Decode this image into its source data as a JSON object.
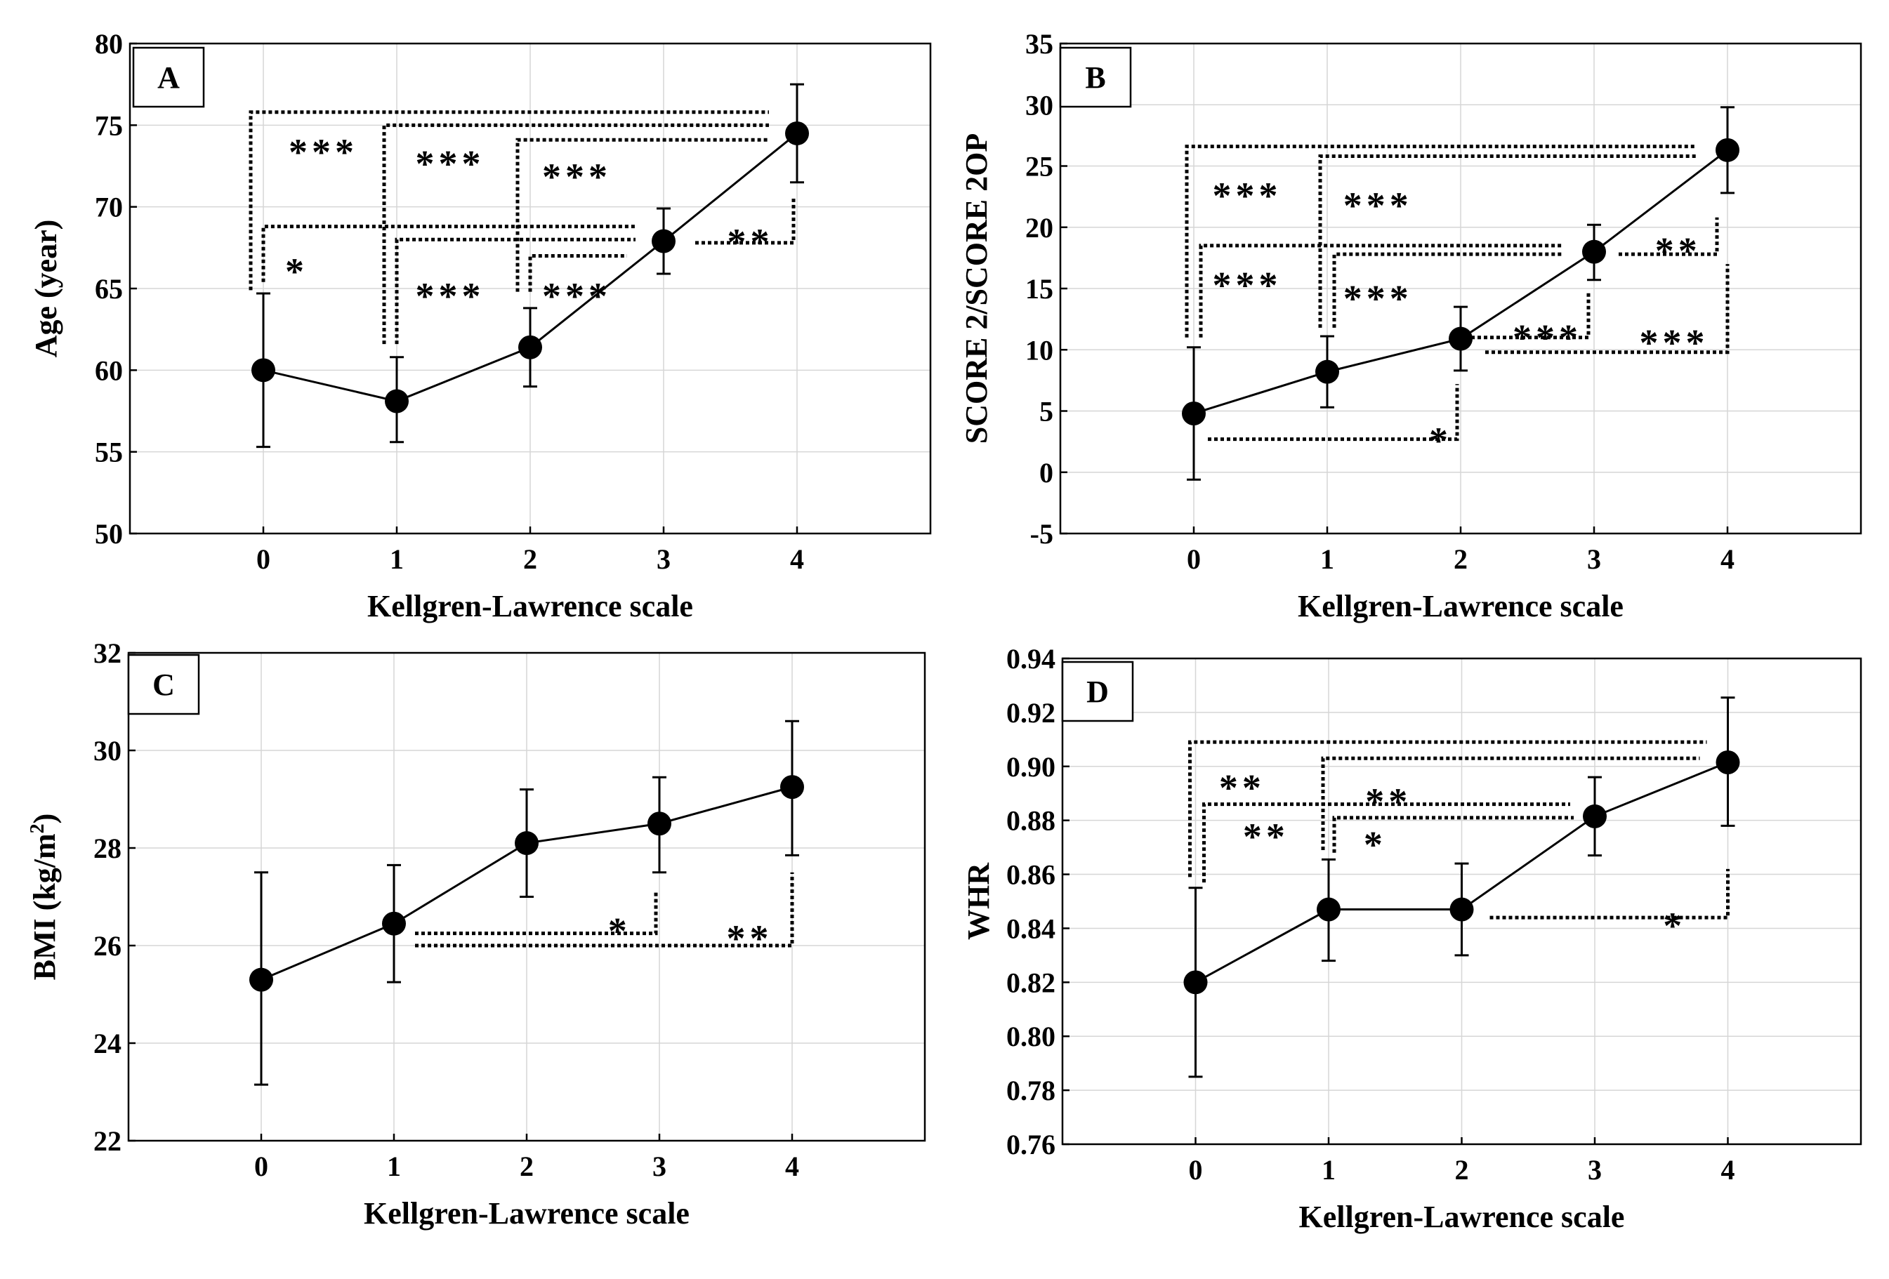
{
  "figure": {
    "panels": [
      {
        "id": "A",
        "label": "A"
      },
      {
        "id": "B",
        "label": "B"
      },
      {
        "id": "C",
        "label": "C"
      },
      {
        "id": "D",
        "label": "D"
      }
    ]
  },
  "chart_data": [
    {
      "id": "A",
      "type": "line",
      "title": "A",
      "xlabel": "Kellgren-Lawrence scale",
      "ylabel": "Age (year)",
      "x": [
        0,
        1,
        2,
        3,
        4
      ],
      "x_ticks": [
        "0",
        "1",
        "2",
        "3",
        "4"
      ],
      "xlim": [
        -1,
        5
      ],
      "ylim": [
        50,
        80
      ],
      "y_ticks": [
        "50",
        "55",
        "60",
        "65",
        "70",
        "75",
        "80"
      ],
      "grid": true,
      "series": [
        {
          "name": "Age",
          "values": [
            60.0,
            58.1,
            61.4,
            67.9,
            74.5
          ],
          "err_low": [
            55.3,
            55.6,
            59.0,
            65.9,
            71.5
          ],
          "err_high": [
            64.7,
            60.8,
            63.8,
            69.9,
            77.5
          ]
        }
      ],
      "annotations": [
        {
          "text": "***",
          "from": 0,
          "to": 4,
          "x": 0.45,
          "y": 73.5
        },
        {
          "text": "*",
          "from": 0,
          "to": 3,
          "x": 0.25,
          "y": 66.2
        },
        {
          "text": "***",
          "from": 1,
          "to": 4,
          "x": 1.4,
          "y": 72.8
        },
        {
          "text": "***",
          "from": 1,
          "to": 3,
          "x": 1.4,
          "y": 64.7
        },
        {
          "text": "***",
          "from": 2,
          "to": 4,
          "x": 2.35,
          "y": 72.0
        },
        {
          "text": "***",
          "from": 2,
          "to": 3,
          "x": 2.35,
          "y": 64.7
        },
        {
          "text": "**",
          "from": 3,
          "to": 4,
          "x": 3.65,
          "y": 68.0
        }
      ]
    },
    {
      "id": "B",
      "type": "line",
      "title": "B",
      "xlabel": "Kellgren-Lawrence scale",
      "ylabel": "SCORE 2/SCORE 2OP",
      "x": [
        0,
        1,
        2,
        3,
        4
      ],
      "x_ticks": [
        "0",
        "1",
        "2",
        "3",
        "4"
      ],
      "xlim": [
        -1,
        5
      ],
      "ylim": [
        -5,
        35
      ],
      "y_ticks": [
        "-5",
        "0",
        "5",
        "10",
        "15",
        "20",
        "25",
        "30",
        "35"
      ],
      "grid": true,
      "series": [
        {
          "name": "SCORE 2/SCORE 2OP",
          "values": [
            4.8,
            8.2,
            10.9,
            18.0,
            26.3
          ],
          "err_low": [
            -0.6,
            5.3,
            8.3,
            15.7,
            22.8
          ],
          "err_high": [
            10.2,
            11.1,
            13.5,
            20.2,
            29.8
          ]
        }
      ],
      "annotations": [
        {
          "text": "***",
          "from": 0,
          "to": 4,
          "x": 0.4,
          "y": 22.8
        },
        {
          "text": "***",
          "from": 0,
          "to": 3,
          "x": 0.4,
          "y": 15.5
        },
        {
          "text": "*",
          "from": 0,
          "to": 2,
          "x": 1.85,
          "y": 2.8
        },
        {
          "text": "***",
          "from": 1,
          "to": 4,
          "x": 1.38,
          "y": 22.0
        },
        {
          "text": "***",
          "from": 1,
          "to": 3,
          "x": 1.38,
          "y": 14.4
        },
        {
          "text": "***",
          "from": 2,
          "to": 3,
          "x": 2.65,
          "y": 11.2
        },
        {
          "text": "***",
          "from": 2,
          "to": 4,
          "x": 3.6,
          "y": 10.8
        },
        {
          "text": "**",
          "from": 3,
          "to": 4,
          "x": 3.63,
          "y": 18.3
        }
      ]
    },
    {
      "id": "C",
      "type": "line",
      "title": "C",
      "xlabel": "Kellgren-Lawrence scale",
      "ylabel": "BMI (kg/m2)",
      "ylabel_main": "BMI (kg/m",
      "ylabel_superscript": "2",
      "ylabel_close": ")",
      "x": [
        0,
        1,
        2,
        3,
        4
      ],
      "x_ticks": [
        "0",
        "1",
        "2",
        "3",
        "4"
      ],
      "xlim": [
        -1,
        5
      ],
      "ylim": [
        22,
        32
      ],
      "y_ticks": [
        "22",
        "24",
        "26",
        "28",
        "30",
        "32"
      ],
      "grid": true,
      "series": [
        {
          "name": "BMI",
          "values": [
            25.3,
            26.45,
            28.1,
            28.5,
            29.25
          ],
          "err_low": [
            23.15,
            25.25,
            27.0,
            27.5,
            27.85
          ],
          "err_high": [
            27.5,
            27.65,
            29.2,
            29.45,
            30.6
          ]
        }
      ],
      "annotations": [
        {
          "text": "*",
          "from": 1,
          "to": 3,
          "x": 2.7,
          "y": 26.35
        },
        {
          "text": "**",
          "from": 1,
          "to": 4,
          "x": 3.68,
          "y": 26.2
        }
      ]
    },
    {
      "id": "D",
      "type": "line",
      "title": "D",
      "xlabel": "Kellgren-Lawrence scale",
      "ylabel": "WHR",
      "x": [
        0,
        1,
        2,
        3,
        4
      ],
      "x_ticks": [
        "0",
        "1",
        "2",
        "3",
        "4"
      ],
      "xlim": [
        -1,
        5
      ],
      "ylim": [
        0.76,
        0.94
      ],
      "y_ticks": [
        "0.76",
        "0.78",
        "0.80",
        "0.82",
        "0.84",
        "0.86",
        "0.88",
        "0.90",
        "0.92",
        "0.94"
      ],
      "grid": true,
      "series": [
        {
          "name": "WHR",
          "values": [
            0.82,
            0.847,
            0.847,
            0.8815,
            0.9015
          ],
          "err_low": [
            0.785,
            0.828,
            0.83,
            0.867,
            0.878
          ],
          "err_high": [
            0.855,
            0.8655,
            0.864,
            0.896,
            0.9255
          ]
        }
      ],
      "annotations": [
        {
          "text": "**",
          "from": 0,
          "to": 4,
          "x": 0.35,
          "y": 0.893
        },
        {
          "text": "**",
          "from": 0,
          "to": 3,
          "x": 0.53,
          "y": 0.875
        },
        {
          "text": "**",
          "from": 1,
          "to": 4,
          "x": 1.45,
          "y": 0.888
        },
        {
          "text": "*",
          "from": 1,
          "to": 3,
          "x": 1.35,
          "y": 0.872
        },
        {
          "text": "*",
          "from": 2,
          "to": 4,
          "x": 3.6,
          "y": 0.842
        }
      ]
    }
  ]
}
